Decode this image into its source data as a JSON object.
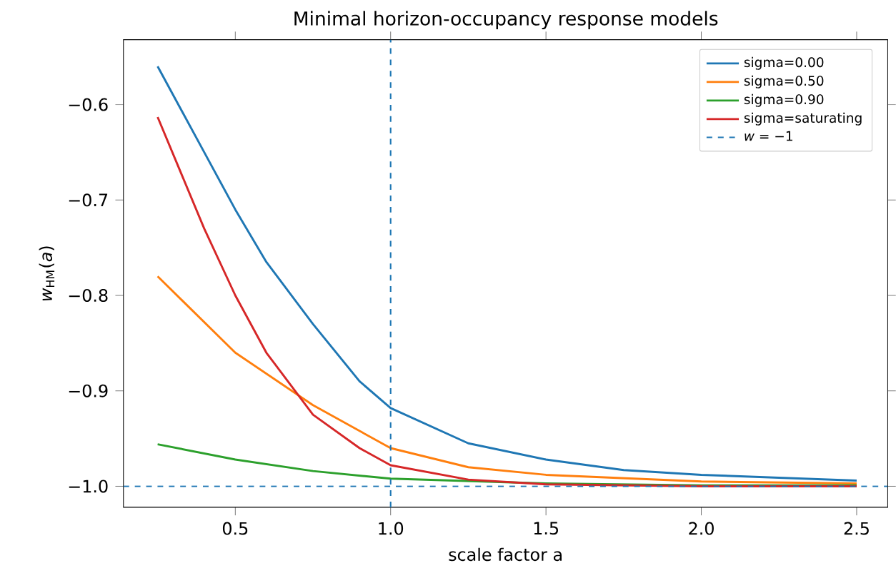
{
  "chart_data": {
    "type": "line",
    "title": "Minimal horizon-occupancy response models",
    "xlabel": "scale factor a",
    "ylabel": "*w*$_{HM}$(*a*)",
    "xlim": [
      0.14,
      2.6
    ],
    "ylim": [
      -1.022,
      -0.532
    ],
    "xticks": [
      {
        "value": 0.5,
        "label": "0.5"
      },
      {
        "value": 1.0,
        "label": "1.0"
      },
      {
        "value": 1.5,
        "label": "1.5"
      },
      {
        "value": 2.0,
        "label": "2.0"
      },
      {
        "value": 2.5,
        "label": "2.5"
      }
    ],
    "yticks": [
      {
        "value": -1.0,
        "label": "−1.0"
      },
      {
        "value": -0.9,
        "label": "−0.9"
      },
      {
        "value": -0.8,
        "label": "−0.8"
      },
      {
        "value": -0.7,
        "label": "−0.7"
      },
      {
        "value": -0.6,
        "label": "−0.6"
      }
    ],
    "legend": "top right",
    "grid": false,
    "marker": "none",
    "line_style": "solid",
    "series": [
      {
        "name": "sigma=0.00",
        "color": "#1f77b4",
        "x": [
          0.25,
          0.4,
          0.5,
          0.6,
          0.75,
          0.9,
          1.0,
          1.25,
          1.5,
          1.75,
          2.0,
          2.25,
          2.5
        ],
        "values": [
          -0.56,
          -0.65,
          -0.71,
          -0.765,
          -0.83,
          -0.89,
          -0.918,
          -0.955,
          -0.972,
          -0.983,
          -0.988,
          -0.991,
          -0.994
        ]
      },
      {
        "name": "sigma=0.50",
        "color": "#ff7f0e",
        "x": [
          0.25,
          0.5,
          0.75,
          1.0,
          1.25,
          1.5,
          2.0,
          2.5
        ],
        "values": [
          -0.78,
          -0.86,
          -0.915,
          -0.96,
          -0.98,
          -0.988,
          -0.995,
          -0.997
        ]
      },
      {
        "name": "sigma=0.90",
        "color": "#2ca02c",
        "x": [
          0.25,
          0.5,
          0.75,
          1.0,
          1.5,
          2.0,
          2.5
        ],
        "values": [
          -0.956,
          -0.972,
          -0.984,
          -0.992,
          -0.997,
          -0.999,
          -0.999
        ]
      },
      {
        "name": "sigma=saturating",
        "color": "#d62728",
        "x": [
          0.25,
          0.4,
          0.5,
          0.6,
          0.75,
          0.9,
          1.0,
          1.25,
          1.5,
          2.0,
          2.5
        ],
        "values": [
          -0.613,
          -0.73,
          -0.8,
          -0.86,
          -0.925,
          -0.96,
          -0.978,
          -0.993,
          -0.998,
          -1.0,
          -1.0
        ]
      }
    ],
    "ref_lines": [
      {
        "axis": "y",
        "value": -1.0,
        "label": "*w* = −1",
        "color": "#1f77b4",
        "line_style": "dashed"
      },
      {
        "axis": "x",
        "value": 1.0,
        "color": "#1f77b4",
        "line_style": "dashed"
      }
    ]
  }
}
